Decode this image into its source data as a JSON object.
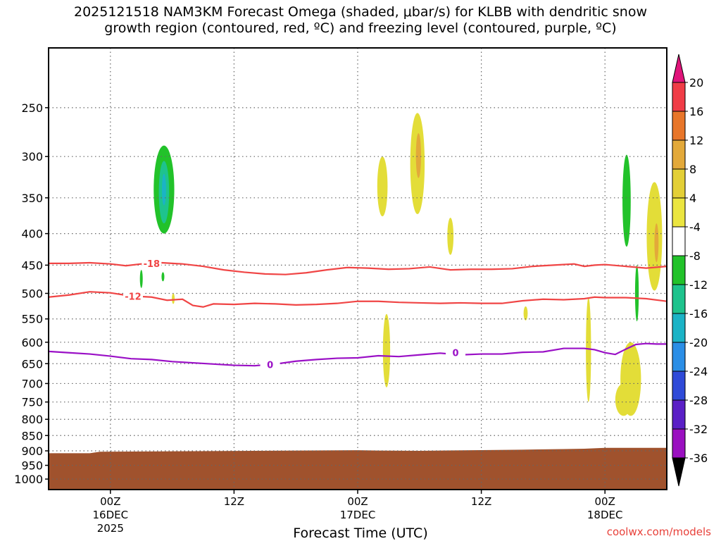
{
  "chart_data": {
    "type": "heatmap",
    "title_line1": "2025121518 NAM3KM Forecast Omega (shaded, μbar/s) for KLBB with dendritic snow",
    "title_line2": "growth region (contoured, red, ºC) and freezing level (contoured, purple, ºC)",
    "xlabel": "Forecast Time (UTC)",
    "credit": "coolwx.com/models",
    "x_ticks": [
      {
        "hour": 0,
        "label": "00Z",
        "sub1": "16DEC",
        "sub2": "2025"
      },
      {
        "hour": 12,
        "label": "12Z",
        "sub1": "",
        "sub2": ""
      },
      {
        "hour": 24,
        "label": "00Z",
        "sub1": "17DEC",
        "sub2": ""
      },
      {
        "hour": 36,
        "label": "12Z",
        "sub1": "",
        "sub2": ""
      },
      {
        "hour": 48,
        "label": "00Z",
        "sub1": "18DEC",
        "sub2": ""
      }
    ],
    "x_range_hours": [
      -6,
      54
    ],
    "y_axis": "pressure (hPa)",
    "y_ticks": [
      250,
      300,
      350,
      400,
      450,
      500,
      550,
      600,
      650,
      700,
      750,
      800,
      850,
      900,
      950,
      1000
    ],
    "y_range": [
      200,
      1040
    ],
    "colorbar": {
      "levels": [
        20,
        16,
        12,
        8,
        4,
        -4,
        -8,
        -12,
        -16,
        -20,
        -24,
        -28,
        -32,
        -36
      ],
      "colors": [
        "#f03c46",
        "#e8762a",
        "#e3a93a",
        "#e3cf36",
        "#ebe540",
        "#ffffff",
        "#22c22a",
        "#1ec38d",
        "#1bb3c6",
        "#2b8ee6",
        "#2f4ad8",
        "#5a1fc6",
        "#9a10c0",
        "#a9a9a9"
      ],
      "top_color": "#e0147a",
      "bottom_color": "#000000"
    },
    "colors": {
      "dgz_contour": "#f04545",
      "freezing_contour": "#9a10c6",
      "ground": "#a0522d"
    },
    "contours": [
      {
        "name": "-18",
        "color": "dgz",
        "points": [
          [
            -6,
            447
          ],
          [
            -4,
            447
          ],
          [
            -2,
            446
          ],
          [
            0,
            448
          ],
          [
            1.5,
            451
          ],
          [
            3,
            448
          ],
          [
            4,
            447
          ],
          [
            5,
            446
          ],
          [
            7,
            448
          ],
          [
            9,
            452
          ],
          [
            11,
            458
          ],
          [
            13,
            462
          ],
          [
            15,
            465
          ],
          [
            17,
            466
          ],
          [
            19,
            463
          ],
          [
            21,
            458
          ],
          [
            23,
            454
          ],
          [
            25,
            455
          ],
          [
            27,
            457
          ],
          [
            29,
            456
          ],
          [
            31,
            453
          ],
          [
            33,
            458
          ],
          [
            35,
            457
          ],
          [
            37,
            457
          ],
          [
            39,
            456
          ],
          [
            41,
            452
          ],
          [
            43,
            450
          ],
          [
            45,
            448
          ],
          [
            46,
            452
          ],
          [
            47,
            450
          ],
          [
            48,
            449
          ],
          [
            50,
            452
          ],
          [
            52,
            455
          ],
          [
            54,
            452
          ]
        ],
        "label_at": 4,
        "label_text": "-18"
      },
      {
        "name": "-12",
        "color": "dgz",
        "points": [
          [
            -6,
            507
          ],
          [
            -4,
            503
          ],
          [
            -2,
            497
          ],
          [
            0,
            499
          ],
          [
            2,
            505
          ],
          [
            4,
            507
          ],
          [
            5.5,
            513
          ],
          [
            7,
            511
          ],
          [
            8,
            523
          ],
          [
            9,
            526
          ],
          [
            10,
            520
          ],
          [
            12,
            521
          ],
          [
            14,
            519
          ],
          [
            16,
            520
          ],
          [
            18,
            522
          ],
          [
            20,
            521
          ],
          [
            22,
            519
          ],
          [
            24,
            515
          ],
          [
            26,
            515
          ],
          [
            28,
            517
          ],
          [
            30,
            518
          ],
          [
            32,
            519
          ],
          [
            34,
            518
          ],
          [
            36,
            519
          ],
          [
            38,
            519
          ],
          [
            40,
            514
          ],
          [
            42,
            511
          ],
          [
            44,
            512
          ],
          [
            46,
            510
          ],
          [
            47,
            507
          ],
          [
            48,
            508
          ],
          [
            50,
            508
          ],
          [
            52,
            510
          ],
          [
            54,
            515
          ]
        ],
        "label_at": 2.2,
        "label_text": "-12"
      },
      {
        "name": "0",
        "color": "freezing",
        "points": [
          [
            -6,
            621
          ],
          [
            -4,
            624
          ],
          [
            -2,
            627
          ],
          [
            0,
            632
          ],
          [
            2,
            638
          ],
          [
            4,
            640
          ],
          [
            6,
            645
          ],
          [
            8,
            648
          ],
          [
            10,
            651
          ],
          [
            12,
            654
          ],
          [
            14,
            655
          ],
          [
            16,
            651
          ],
          [
            18,
            644
          ],
          [
            20,
            640
          ],
          [
            22,
            637
          ],
          [
            24,
            636
          ],
          [
            26,
            631
          ],
          [
            28,
            633
          ],
          [
            30,
            629
          ],
          [
            32,
            625
          ],
          [
            34,
            629
          ],
          [
            36,
            627
          ],
          [
            38,
            627
          ],
          [
            40,
            623
          ],
          [
            42,
            622
          ],
          [
            44,
            614
          ],
          [
            46,
            614
          ],
          [
            47,
            617
          ],
          [
            48,
            624
          ],
          [
            49,
            628
          ],
          [
            50,
            616
          ],
          [
            51,
            605
          ],
          [
            52,
            603
          ],
          [
            53,
            604
          ],
          [
            54,
            604
          ]
        ],
        "label_at": 15.5,
        "label_text": "0"
      },
      {
        "name": "0b",
        "color": "freezing",
        "points": [
          [
            30,
            624
          ],
          [
            32,
            620
          ]
        ],
        "label_at": 33.5,
        "label_text": "0"
      }
    ],
    "omega_blobs": [
      {
        "color": "green",
        "cx": 5.2,
        "p_top": 288,
        "p_bot": 400,
        "w": 1.0
      },
      {
        "color": "teal",
        "cx": 5.2,
        "p_top": 305,
        "p_bot": 385,
        "w": 0.5
      },
      {
        "color": "cyan",
        "cx": 5.2,
        "p_top": 320,
        "p_bot": 360,
        "w": 0.2
      },
      {
        "color": "green",
        "cx": 3.0,
        "p_top": 458,
        "p_bot": 490,
        "w": 0.12
      },
      {
        "color": "green",
        "cx": 5.1,
        "p_top": 462,
        "p_bot": 478,
        "w": 0.12
      },
      {
        "color": "yellow",
        "cx": 6.1,
        "p_top": 500,
        "p_bot": 520,
        "w": 0.08
      },
      {
        "color": "yellow",
        "cx": 26.4,
        "p_top": 300,
        "p_bot": 375,
        "w": 0.5
      },
      {
        "color": "yellow",
        "cx": 29.8,
        "p_top": 255,
        "p_bot": 372,
        "w": 0.7
      },
      {
        "color": "orange",
        "cx": 29.9,
        "p_top": 275,
        "p_bot": 325,
        "w": 0.25
      },
      {
        "color": "yellow",
        "cx": 33.0,
        "p_top": 377,
        "p_bot": 433,
        "w": 0.3
      },
      {
        "color": "yellow",
        "cx": 26.8,
        "p_top": 540,
        "p_bot": 710,
        "w": 0.35
      },
      {
        "color": "yellow",
        "cx": 40.3,
        "p_top": 525,
        "p_bot": 553,
        "w": 0.2
      },
      {
        "color": "yellow",
        "cx": 46.4,
        "p_top": 508,
        "p_bot": 750,
        "w": 0.25
      },
      {
        "color": "yellow",
        "cx": 50.5,
        "p_top": 600,
        "p_bot": 790,
        "w": 1.0
      },
      {
        "color": "yellow",
        "cx": 49.8,
        "p_top": 700,
        "p_bot": 790,
        "w": 0.8
      },
      {
        "color": "green",
        "cx": 50.1,
        "p_top": 298,
        "p_bot": 420,
        "w": 0.4
      },
      {
        "color": "green",
        "cx": 51.1,
        "p_top": 450,
        "p_bot": 555,
        "w": 0.18
      },
      {
        "color": "yellow",
        "cx": 52.8,
        "p_top": 330,
        "p_bot": 495,
        "w": 0.75
      },
      {
        "color": "orange",
        "cx": 53.0,
        "p_top": 385,
        "p_bot": 445,
        "w": 0.2
      }
    ],
    "ground_pressure": [
      [
        -6,
        908
      ],
      [
        -2,
        908
      ],
      [
        -1,
        903
      ],
      [
        24,
        898
      ],
      [
        26,
        899
      ],
      [
        30,
        900
      ],
      [
        40,
        896
      ],
      [
        44,
        894
      ],
      [
        46,
        893
      ],
      [
        48,
        890
      ],
      [
        54,
        890
      ]
    ]
  }
}
